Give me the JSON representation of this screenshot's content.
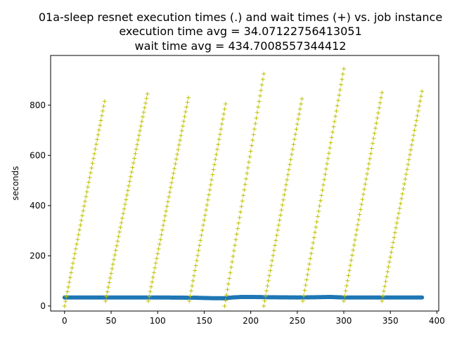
{
  "chart_data": {
    "type": "scatter",
    "title_lines": [
      "01a-sleep resnet execution times (.) and wait times (+) vs. job instance",
      "execution time avg = 34.07122756413051",
      "wait time avg = 434.7008557344412"
    ],
    "xlabel": "",
    "ylabel": "seconds",
    "xlim": [
      -15,
      402
    ],
    "ylim": [
      -20,
      998
    ],
    "xticks": [
      0,
      50,
      100,
      150,
      200,
      250,
      300,
      350,
      400
    ],
    "yticks": [
      0,
      200,
      400,
      600,
      800
    ],
    "n_jobs": 385,
    "series": [
      {
        "marker": "dot",
        "color": "#1f77b4",
        "x_start": 0,
        "x_end": 384,
        "baseline": 34,
        "points": [
          [
            0,
            34
          ],
          [
            50,
            34
          ],
          [
            100,
            34
          ],
          [
            140,
            33
          ],
          [
            150,
            32
          ],
          [
            160,
            31
          ],
          [
            172,
            31
          ],
          [
            180,
            34
          ],
          [
            190,
            36
          ],
          [
            200,
            36
          ],
          [
            220,
            35
          ],
          [
            250,
            34
          ],
          [
            270,
            35
          ],
          [
            285,
            36
          ],
          [
            300,
            34
          ],
          [
            350,
            34
          ],
          [
            384,
            34
          ]
        ]
      },
      {
        "marker": "plus",
        "color": "#bfbf00",
        "ramps": [
          {
            "x_start": 0,
            "x_end": 43,
            "y_start": 0,
            "y_end": 815
          },
          {
            "x_start": 44,
            "x_end": 89,
            "y_start": 20,
            "y_end": 845
          },
          {
            "x_start": 90,
            "x_end": 133,
            "y_start": 20,
            "y_end": 830
          },
          {
            "x_start": 134,
            "x_end": 173,
            "y_start": 20,
            "y_end": 805
          },
          {
            "x_start": 172,
            "x_end": 214,
            "y_start": 0,
            "y_end": 925
          },
          {
            "x_start": 214,
            "x_end": 255,
            "y_start": 0,
            "y_end": 825
          },
          {
            "x_start": 256,
            "x_end": 300,
            "y_start": 20,
            "y_end": 945
          },
          {
            "x_start": 300,
            "x_end": 341,
            "y_start": 20,
            "y_end": 850
          },
          {
            "x_start": 341,
            "x_end": 384,
            "y_start": 20,
            "y_end": 855
          }
        ]
      }
    ]
  }
}
